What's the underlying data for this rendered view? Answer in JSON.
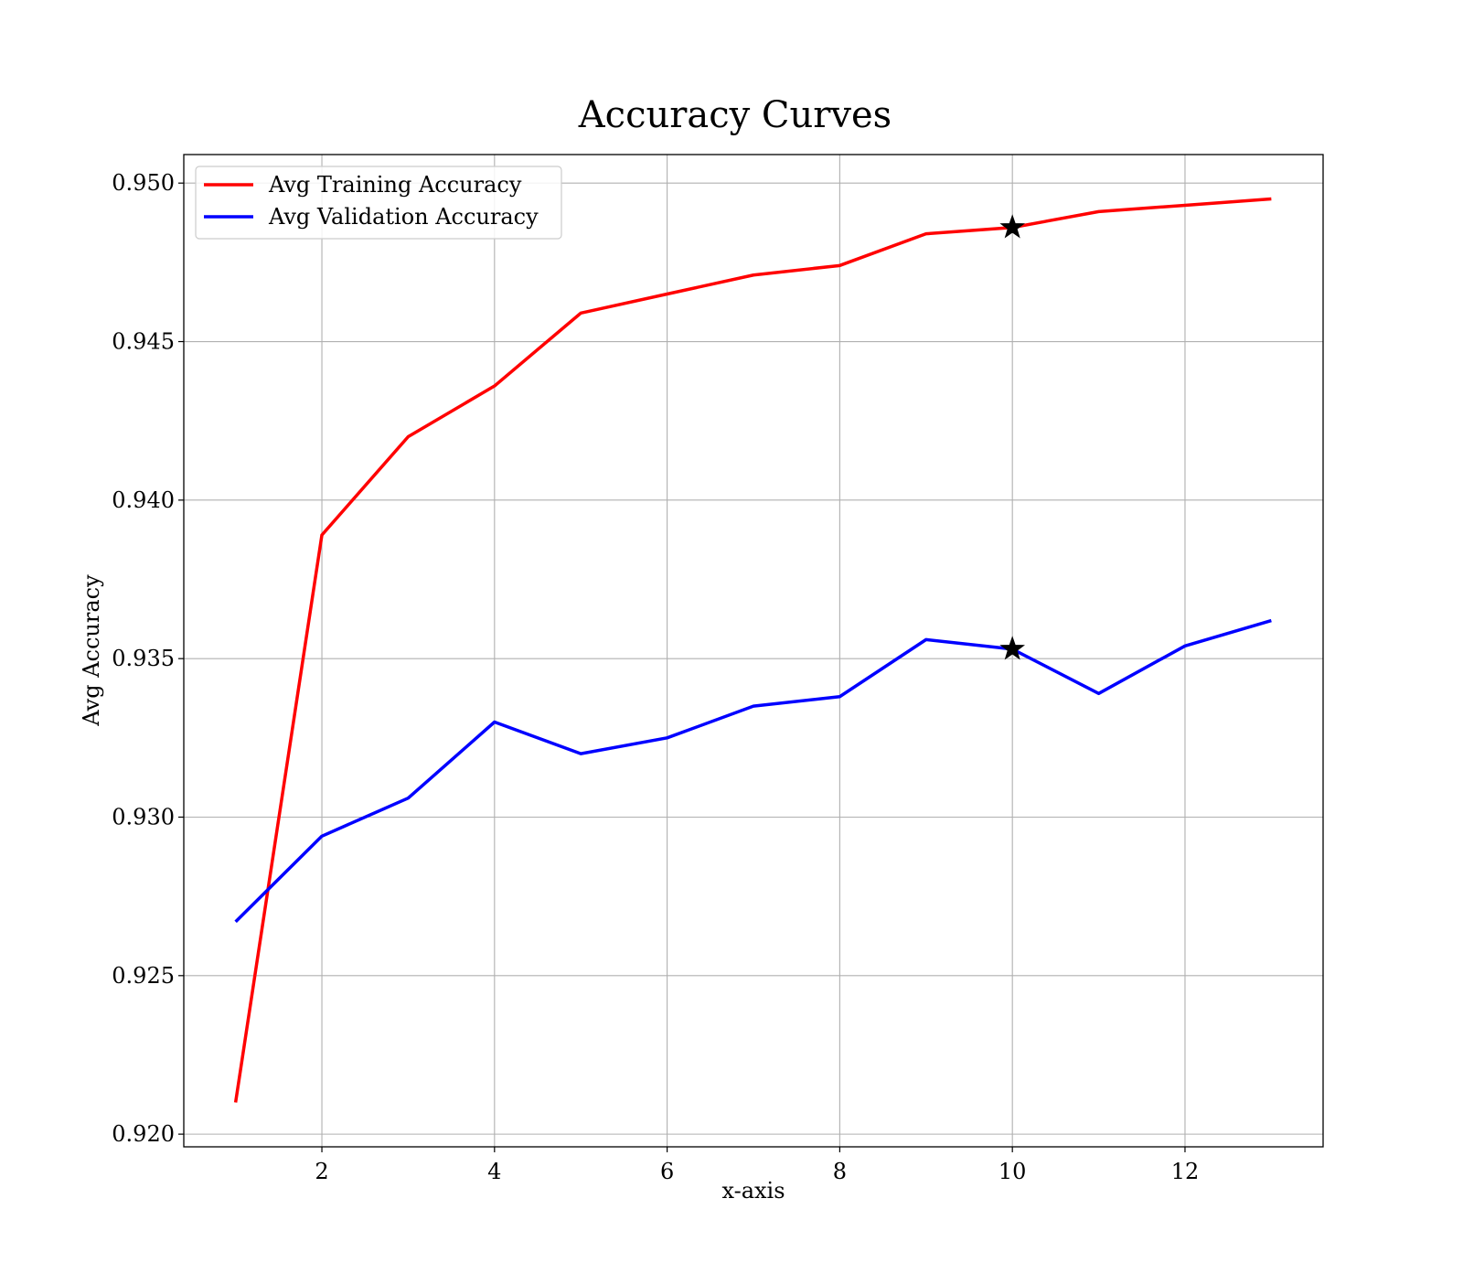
{
  "chart_data": {
    "type": "line",
    "title": "Accuracy Curves",
    "xlabel": "x-axis",
    "ylabel": "Avg Accuracy",
    "x": [
      1,
      2,
      3,
      4,
      5,
      6,
      7,
      8,
      9,
      10,
      11,
      12,
      13
    ],
    "xlim": [
      0.4,
      13.6
    ],
    "ylim": [
      0.9196,
      0.9509
    ],
    "xticks": [
      2,
      4,
      6,
      8,
      10,
      12
    ],
    "xtick_labels": [
      "2",
      "4",
      "6",
      "8",
      "10",
      "12"
    ],
    "yticks": [
      0.92,
      0.925,
      0.93,
      0.935,
      0.94,
      0.945,
      0.95
    ],
    "ytick_labels": [
      "0.920",
      "0.925",
      "0.930",
      "0.935",
      "0.940",
      "0.945",
      "0.950"
    ],
    "grid": true,
    "legend": "top-left",
    "series": [
      {
        "name": "Avg Training Accuracy",
        "color": "#ff0000",
        "values": [
          0.921,
          0.9389,
          0.942,
          0.9436,
          0.9459,
          0.9465,
          0.9471,
          0.9474,
          0.9484,
          0.9486,
          0.9491,
          0.9493,
          0.9495
        ]
      },
      {
        "name": "Avg Validation Accuracy",
        "color": "#0000ff",
        "values": [
          0.9267,
          0.9294,
          0.9306,
          0.933,
          0.932,
          0.9325,
          0.9335,
          0.9338,
          0.9356,
          0.9353,
          0.9339,
          0.9354,
          0.9362
        ]
      }
    ],
    "markers": [
      {
        "series": "Avg Training Accuracy",
        "x": 10,
        "y": 0.9486,
        "symbol": "star",
        "color": "#000000"
      },
      {
        "series": "Avg Validation Accuracy",
        "x": 10,
        "y": 0.9353,
        "symbol": "star",
        "color": "#000000"
      }
    ]
  }
}
